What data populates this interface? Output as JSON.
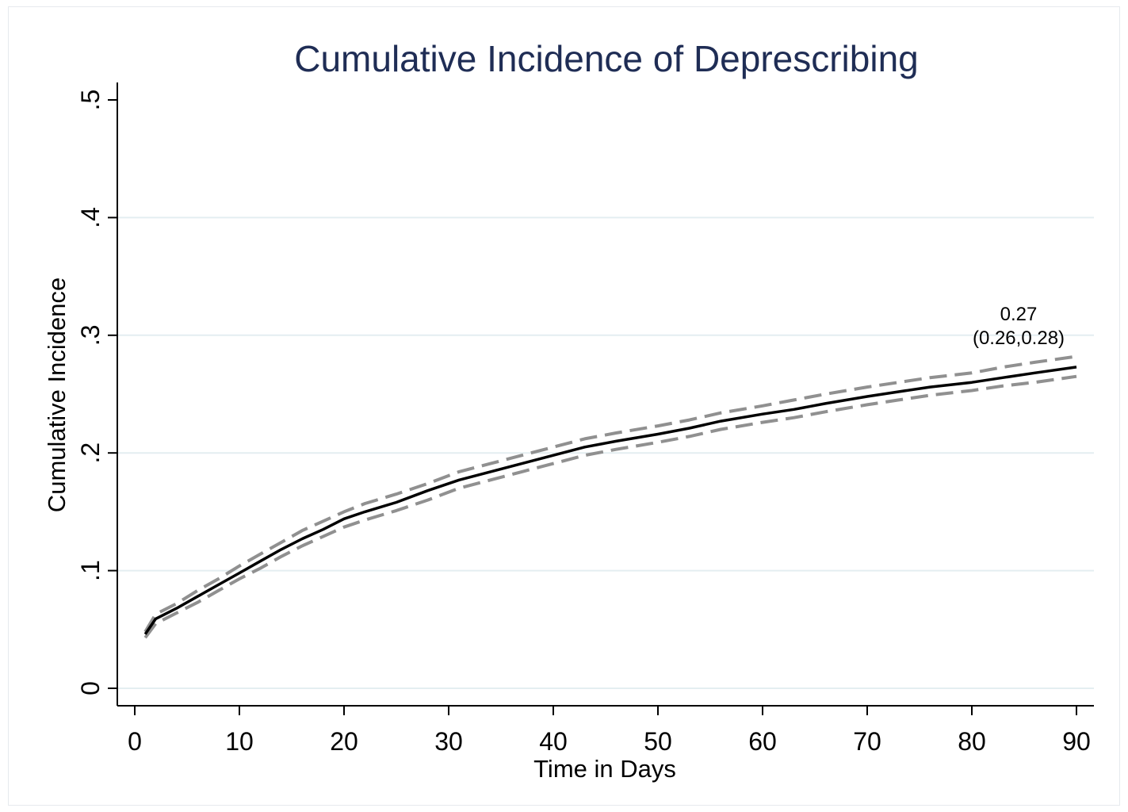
{
  "chart_data": {
    "type": "line",
    "title": "Cumulative Incidence of Deprescribing",
    "xlabel": "Time in Days",
    "ylabel": "Cumulative Incidence",
    "xlim": [
      0,
      90
    ],
    "ylim": [
      0,
      0.5
    ],
    "x_ticks": [
      0,
      10,
      20,
      30,
      40,
      50,
      60,
      70,
      80,
      90
    ],
    "x_tick_labels": [
      "0",
      "10",
      "20",
      "30",
      "40",
      "50",
      "60",
      "70",
      "80",
      "90"
    ],
    "y_ticks": [
      0,
      0.1,
      0.2,
      0.3,
      0.4,
      0.5
    ],
    "y_tick_labels": [
      "0",
      ".1",
      ".2",
      ".3",
      ".4",
      ".5"
    ],
    "grid": "horizontal",
    "x": [
      1,
      2,
      4,
      6,
      8,
      10,
      12,
      14,
      16,
      18,
      20,
      22,
      25,
      28,
      31,
      34,
      37,
      40,
      43,
      46,
      50,
      53,
      56,
      60,
      63,
      66,
      70,
      73,
      76,
      80,
      83,
      86,
      90
    ],
    "series": [
      {
        "name": "",
        "style": "solid",
        "color": "#000000",
        "values": [
          0.046,
          0.059,
          0.068,
          0.078,
          0.088,
          0.098,
          0.108,
          0.118,
          0.127,
          0.135,
          0.144,
          0.15,
          0.158,
          0.168,
          0.177,
          0.184,
          0.191,
          0.198,
          0.205,
          0.21,
          0.216,
          0.221,
          0.227,
          0.233,
          0.237,
          0.242,
          0.248,
          0.252,
          0.256,
          0.26,
          0.264,
          0.268,
          0.273
        ]
      },
      {
        "name": "",
        "style": "dashed",
        "color": "#909090",
        "values": [
          0.048,
          0.063,
          0.072,
          0.083,
          0.093,
          0.104,
          0.114,
          0.124,
          0.134,
          0.142,
          0.15,
          0.157,
          0.165,
          0.174,
          0.184,
          0.191,
          0.198,
          0.205,
          0.212,
          0.217,
          0.223,
          0.228,
          0.234,
          0.24,
          0.245,
          0.25,
          0.256,
          0.26,
          0.264,
          0.268,
          0.273,
          0.277,
          0.282
        ]
      },
      {
        "name": "",
        "style": "dashed",
        "color": "#909090",
        "values": [
          0.043,
          0.055,
          0.064,
          0.073,
          0.083,
          0.093,
          0.102,
          0.112,
          0.121,
          0.129,
          0.137,
          0.143,
          0.151,
          0.16,
          0.17,
          0.177,
          0.184,
          0.191,
          0.198,
          0.203,
          0.209,
          0.214,
          0.22,
          0.226,
          0.23,
          0.235,
          0.241,
          0.245,
          0.249,
          0.253,
          0.257,
          0.26,
          0.265
        ]
      }
    ],
    "annotation": {
      "estimate": "0.27",
      "interval": "(0.26,0.28)"
    }
  }
}
